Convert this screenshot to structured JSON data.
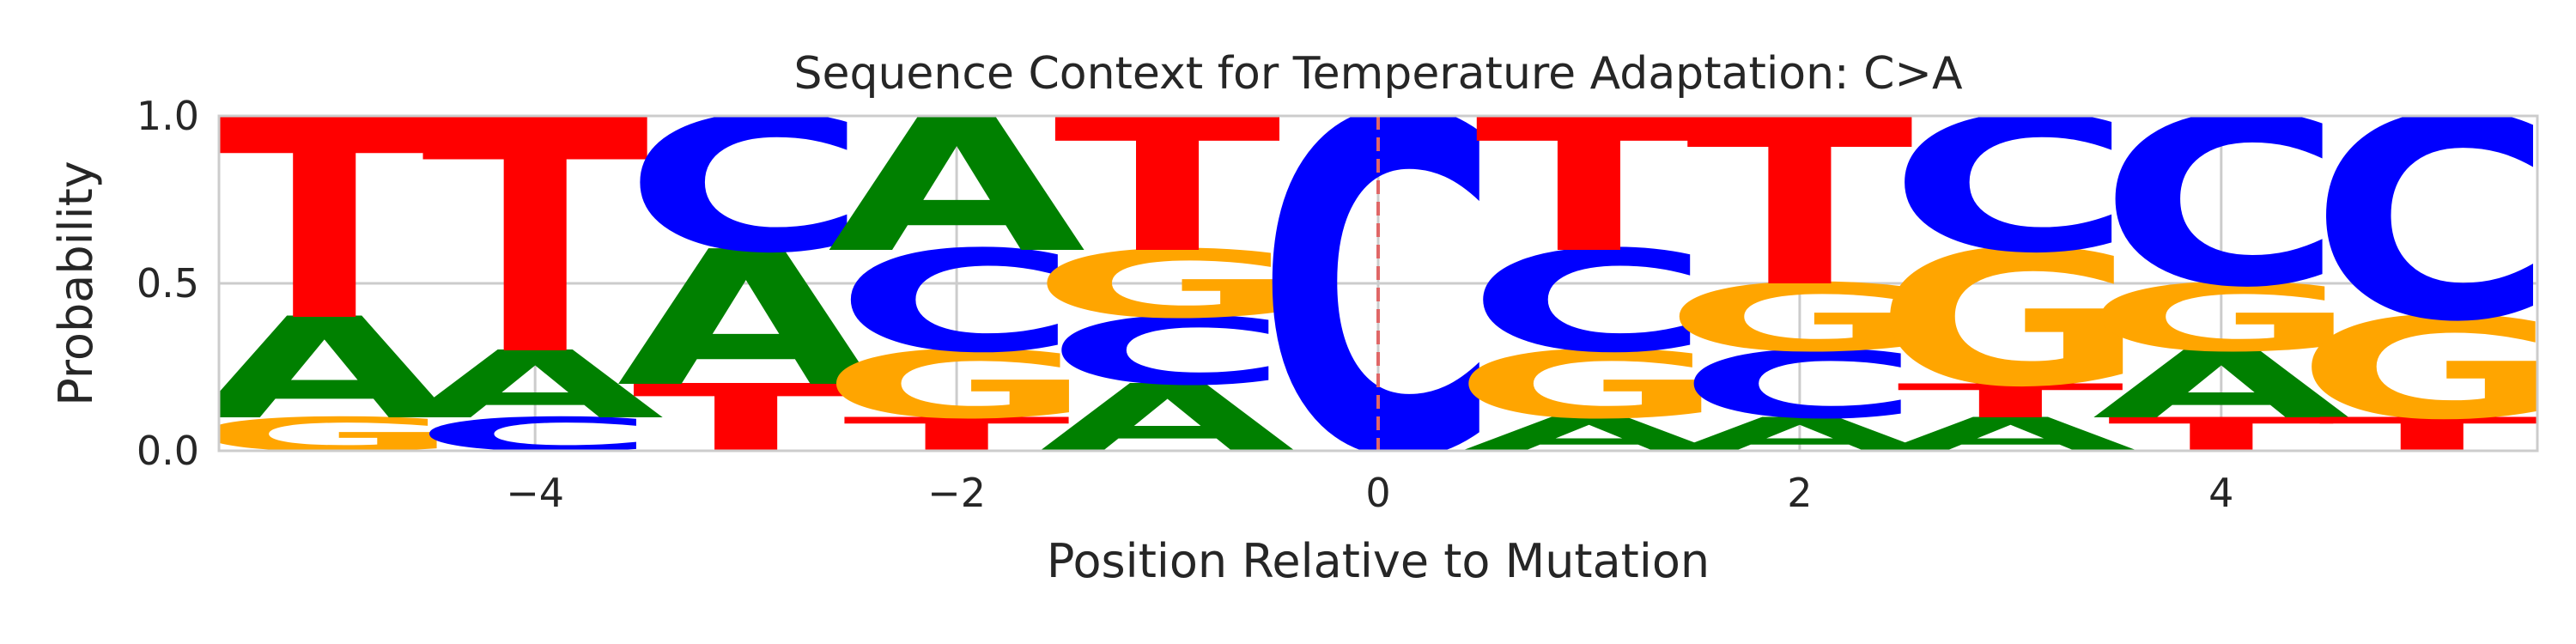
{
  "chart_data": {
    "type": "sequence-logo",
    "title": "Sequence Context for Temperature Adaptation: C>A",
    "xlabel": "Position Relative to Mutation",
    "ylabel": "Probability",
    "xlim": [
      -5.5,
      5.5
    ],
    "ylim": [
      0,
      1
    ],
    "x_ticks": [
      -4,
      -2,
      0,
      2,
      4
    ],
    "x_tick_labels": [
      "−4",
      "−2",
      "0",
      "2",
      "4"
    ],
    "y_ticks": [
      0,
      0.5,
      1
    ],
    "y_tick_labels": [
      "0.0",
      "0.5",
      "1.0"
    ],
    "grid": true,
    "mutation_marker": {
      "x": 0,
      "style": "dashed",
      "color": "#e06666"
    },
    "colors": {
      "A": "#008000",
      "C": "#0000ff",
      "G": "#ffa500",
      "T": "#ff0000"
    },
    "positions": [
      {
        "x": -5,
        "stack": [
          {
            "base": "G",
            "value": 0.1
          },
          {
            "base": "A",
            "value": 0.3
          },
          {
            "base": "T",
            "value": 0.6
          }
        ]
      },
      {
        "x": -4,
        "stack": [
          {
            "base": "C",
            "value": 0.1
          },
          {
            "base": "A",
            "value": 0.2
          },
          {
            "base": "T",
            "value": 0.7
          }
        ]
      },
      {
        "x": -3,
        "stack": [
          {
            "base": "T",
            "value": 0.2
          },
          {
            "base": "A",
            "value": 0.4
          },
          {
            "base": "C",
            "value": 0.4
          }
        ]
      },
      {
        "x": -2,
        "stack": [
          {
            "base": "T",
            "value": 0.1
          },
          {
            "base": "G",
            "value": 0.2
          },
          {
            "base": "C",
            "value": 0.3
          },
          {
            "base": "A",
            "value": 0.4
          }
        ]
      },
      {
        "x": -1,
        "stack": [
          {
            "base": "A",
            "value": 0.2
          },
          {
            "base": "C",
            "value": 0.2
          },
          {
            "base": "G",
            "value": 0.2
          },
          {
            "base": "T",
            "value": 0.4
          }
        ]
      },
      {
        "x": 0,
        "stack": [
          {
            "base": "C",
            "value": 1.0
          }
        ]
      },
      {
        "x": 1,
        "stack": [
          {
            "base": "A",
            "value": 0.1
          },
          {
            "base": "G",
            "value": 0.2
          },
          {
            "base": "C",
            "value": 0.3
          },
          {
            "base": "T",
            "value": 0.4
          }
        ]
      },
      {
        "x": 2,
        "stack": [
          {
            "base": "A",
            "value": 0.1
          },
          {
            "base": "C",
            "value": 0.2
          },
          {
            "base": "G",
            "value": 0.2
          },
          {
            "base": "T",
            "value": 0.5
          }
        ]
      },
      {
        "x": 3,
        "stack": [
          {
            "base": "A",
            "value": 0.1
          },
          {
            "base": "T",
            "value": 0.1
          },
          {
            "base": "G",
            "value": 0.4
          },
          {
            "base": "C",
            "value": 0.4
          }
        ]
      },
      {
        "x": 4,
        "stack": [
          {
            "base": "T",
            "value": 0.1
          },
          {
            "base": "A",
            "value": 0.2
          },
          {
            "base": "G",
            "value": 0.2
          },
          {
            "base": "C",
            "value": 0.5
          }
        ]
      },
      {
        "x": 5,
        "stack": [
          {
            "base": "T",
            "value": 0.1
          },
          {
            "base": "G",
            "value": 0.3
          },
          {
            "base": "C",
            "value": 0.6
          }
        ]
      }
    ]
  }
}
